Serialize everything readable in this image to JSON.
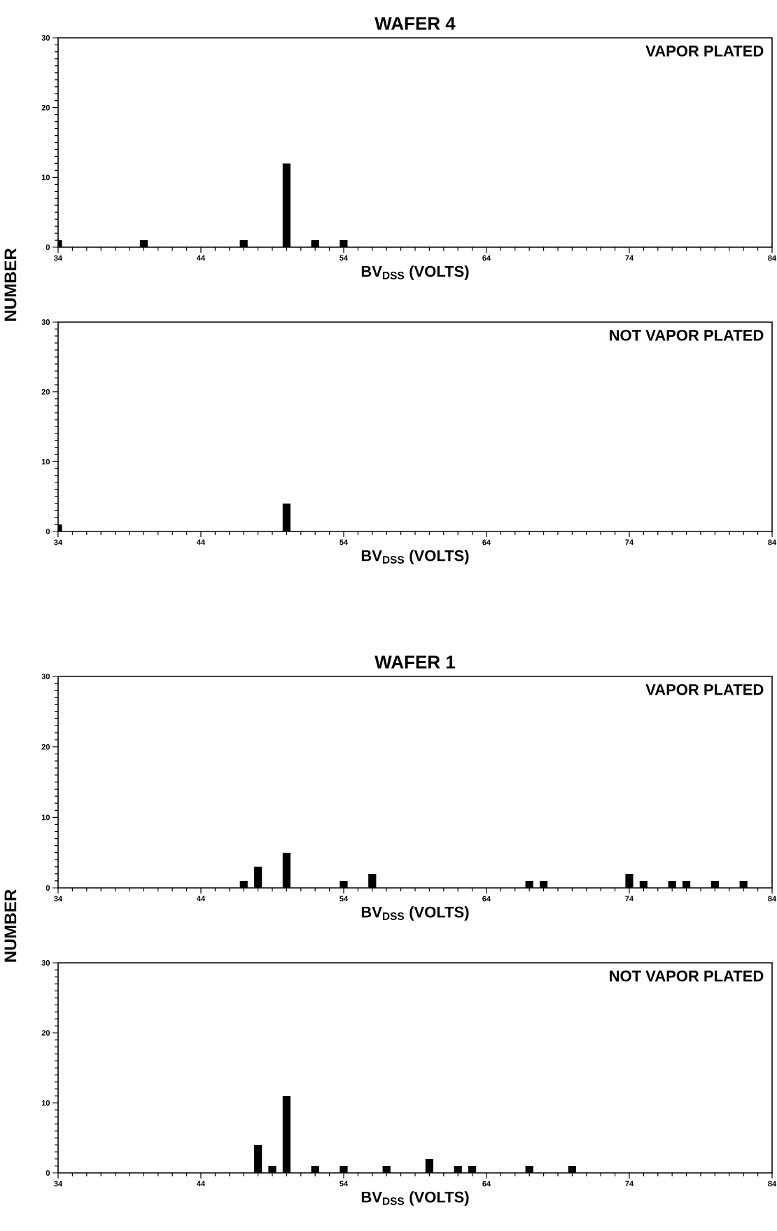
{
  "chart_data": [
    {
      "type": "bar",
      "title": "WAFER 4",
      "ylabel": "NUMBER",
      "xlabel": "BV$_{DSS}$ (VOLTS)",
      "annotations": [
        "VAPOR PLATED"
      ],
      "x": [
        34,
        40,
        47,
        50,
        52,
        54
      ],
      "values": [
        1,
        1,
        1,
        12,
        1,
        1
      ],
      "color": "#000000",
      "xlim": [
        34,
        84
      ],
      "xticks": [
        34,
        44,
        54,
        64,
        74,
        84
      ],
      "ylim": [
        0,
        30
      ],
      "yticks": [
        0,
        10,
        20,
        30
      ]
    },
    {
      "type": "bar",
      "xlabel": "BV$_{DSS}$ (VOLTS)",
      "annotations": [
        "NOT VAPOR PLATED"
      ],
      "x": [
        34,
        50
      ],
      "values": [
        1,
        4
      ],
      "color": "#000000",
      "xlim": [
        34,
        84
      ],
      "xticks": [
        34,
        44,
        54,
        64,
        74,
        84
      ],
      "ylim": [
        0,
        30
      ],
      "yticks": [
        0,
        10,
        20,
        30
      ]
    },
    {
      "type": "bar",
      "title": "WAFER 1",
      "ylabel": "NUMBER",
      "xlabel": "BV$_{DSS}$ (VOLTS)",
      "annotations": [
        "VAPOR PLATED"
      ],
      "x": [
        47,
        48,
        50,
        54,
        56,
        67,
        68,
        74,
        75,
        77,
        78,
        80,
        82
      ],
      "values": [
        1,
        3,
        5,
        1,
        2,
        1,
        1,
        2,
        1,
        1,
        1,
        1,
        1
      ],
      "color": "#000000",
      "xlim": [
        34,
        84
      ],
      "xticks": [
        34,
        44,
        54,
        64,
        74,
        84
      ],
      "ylim": [
        0,
        30
      ],
      "yticks": [
        0,
        10,
        20,
        30
      ]
    },
    {
      "type": "bar",
      "xlabel": "BV$_{DSS}$ (VOLTS)",
      "annotations": [
        "NOT VAPOR PLATED"
      ],
      "x": [
        48,
        49,
        50,
        52,
        54,
        57,
        60,
        62,
        63,
        67,
        70
      ],
      "values": [
        4,
        1,
        11,
        1,
        1,
        1,
        2,
        1,
        1,
        1,
        1
      ],
      "color": "#000000",
      "xlim": [
        34,
        84
      ],
      "xticks": [
        34,
        44,
        54,
        64,
        74,
        84
      ],
      "ylim": [
        0,
        30
      ],
      "yticks": [
        0,
        10,
        20,
        30
      ]
    }
  ]
}
